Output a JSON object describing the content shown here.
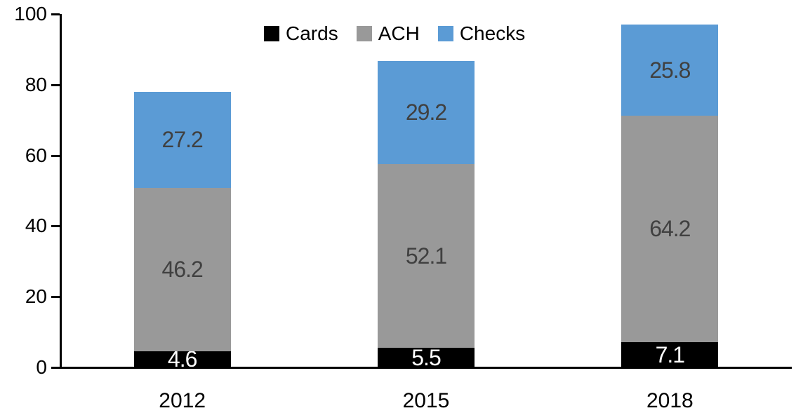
{
  "chart_data": {
    "type": "bar",
    "stacked": true,
    "title": "",
    "xlabel": "",
    "ylabel": "",
    "categories": [
      "2012",
      "2015",
      "2018"
    ],
    "series": [
      {
        "name": "Cards",
        "color": "#000000",
        "label_color": "#ffffff",
        "values": [
          4.6,
          5.5,
          7.1
        ]
      },
      {
        "name": "ACH",
        "color": "#999999",
        "label_color": "#404040",
        "values": [
          46.2,
          52.1,
          64.2
        ]
      },
      {
        "name": "Checks",
        "color": "#5b9bd5",
        "label_color": "#404040",
        "values": [
          27.2,
          29.2,
          25.8
        ]
      }
    ],
    "yticks": [
      0,
      20,
      40,
      60,
      80,
      100
    ],
    "ylim": [
      0,
      100
    ],
    "grid": false,
    "legend_position": "top-center",
    "axis_color": "#000000",
    "data_labels_shown": true
  }
}
